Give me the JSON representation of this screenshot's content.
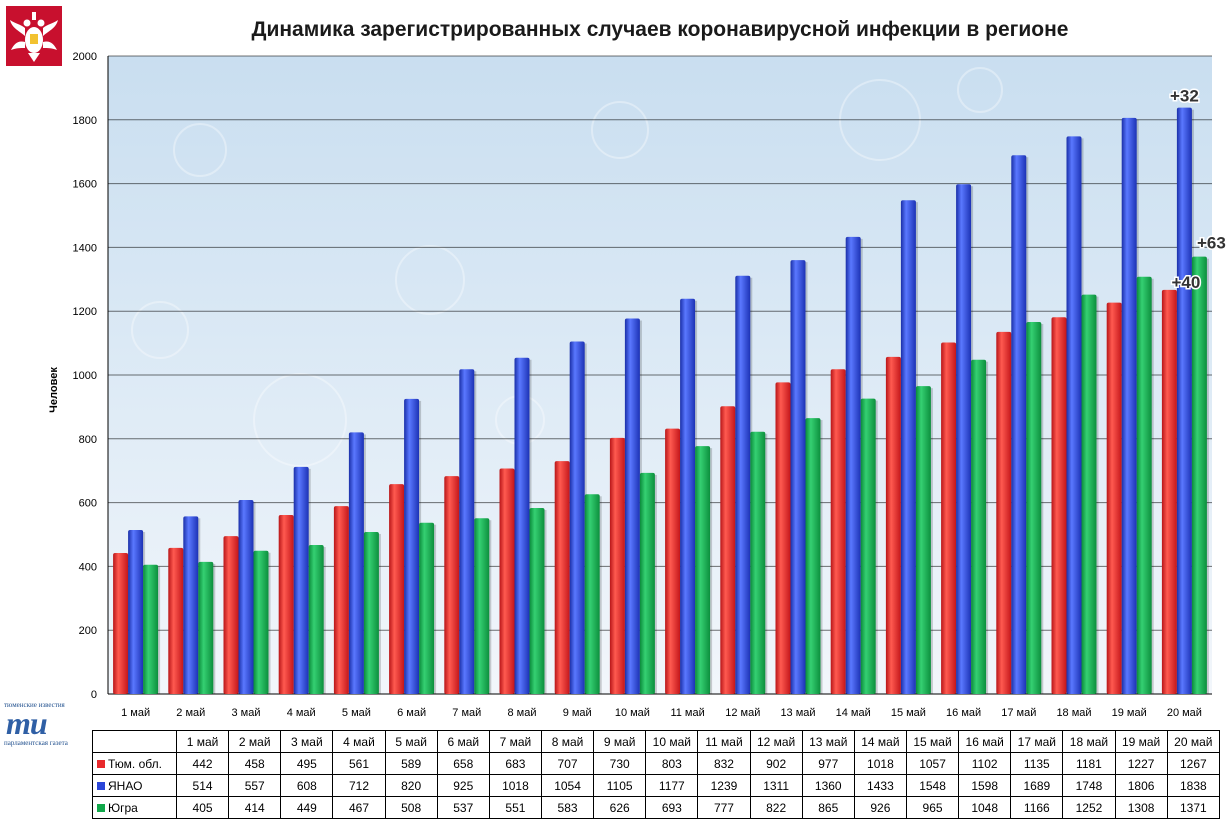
{
  "chart_data": {
    "type": "bar",
    "title": "Динамика зарегистрированных случаев коронавирусной инфекции  в регионе",
    "xlabel": "",
    "ylabel": "Человек",
    "ylim": [
      0,
      2000
    ],
    "yticks": [
      0,
      200,
      400,
      600,
      800,
      1000,
      1200,
      1400,
      1600,
      1800,
      2000
    ],
    "grid": true,
    "legend": "table-below",
    "categories": [
      "1 май",
      "2 май",
      "3 май",
      "4 май",
      "5 май",
      "6 май",
      "7 май",
      "8 май",
      "9 май",
      "10 май",
      "11 май",
      "12 май",
      "13 май",
      "14 май",
      "15 май",
      "16 май",
      "17 май",
      "18 май",
      "19 май",
      "20 май"
    ],
    "series": [
      {
        "name": "Тюм. обл.",
        "color": "#e8292b",
        "values": [
          442,
          458,
          495,
          561,
          589,
          658,
          683,
          707,
          730,
          803,
          832,
          902,
          977,
          1018,
          1057,
          1102,
          1135,
          1181,
          1227,
          1267
        ]
      },
      {
        "name": "ЯНАО",
        "color": "#2a45d8",
        "values": [
          514,
          557,
          608,
          712,
          820,
          925,
          1018,
          1054,
          1105,
          1177,
          1239,
          1311,
          1360,
          1433,
          1548,
          1598,
          1689,
          1748,
          1806,
          1838
        ]
      },
      {
        "name": "Югра",
        "color": "#10a84a",
        "values": [
          405,
          414,
          449,
          467,
          508,
          537,
          551,
          583,
          626,
          693,
          777,
          822,
          865,
          926,
          965,
          1048,
          1166,
          1252,
          1308,
          1371
        ]
      }
    ],
    "annotations": [
      {
        "text": "+40",
        "category": "20 май",
        "series": "Тюм. обл."
      },
      {
        "text": "+32",
        "category": "20 май",
        "series": "ЯНАО"
      },
      {
        "text": "+63",
        "category": "20 май",
        "series": "Югра"
      }
    ]
  },
  "publisher": {
    "top": "тюменские известия",
    "mark": "ти",
    "bottom": "парламентская газета"
  },
  "icons": {
    "emblem": "double-headed-eagle-emblem-icon"
  }
}
